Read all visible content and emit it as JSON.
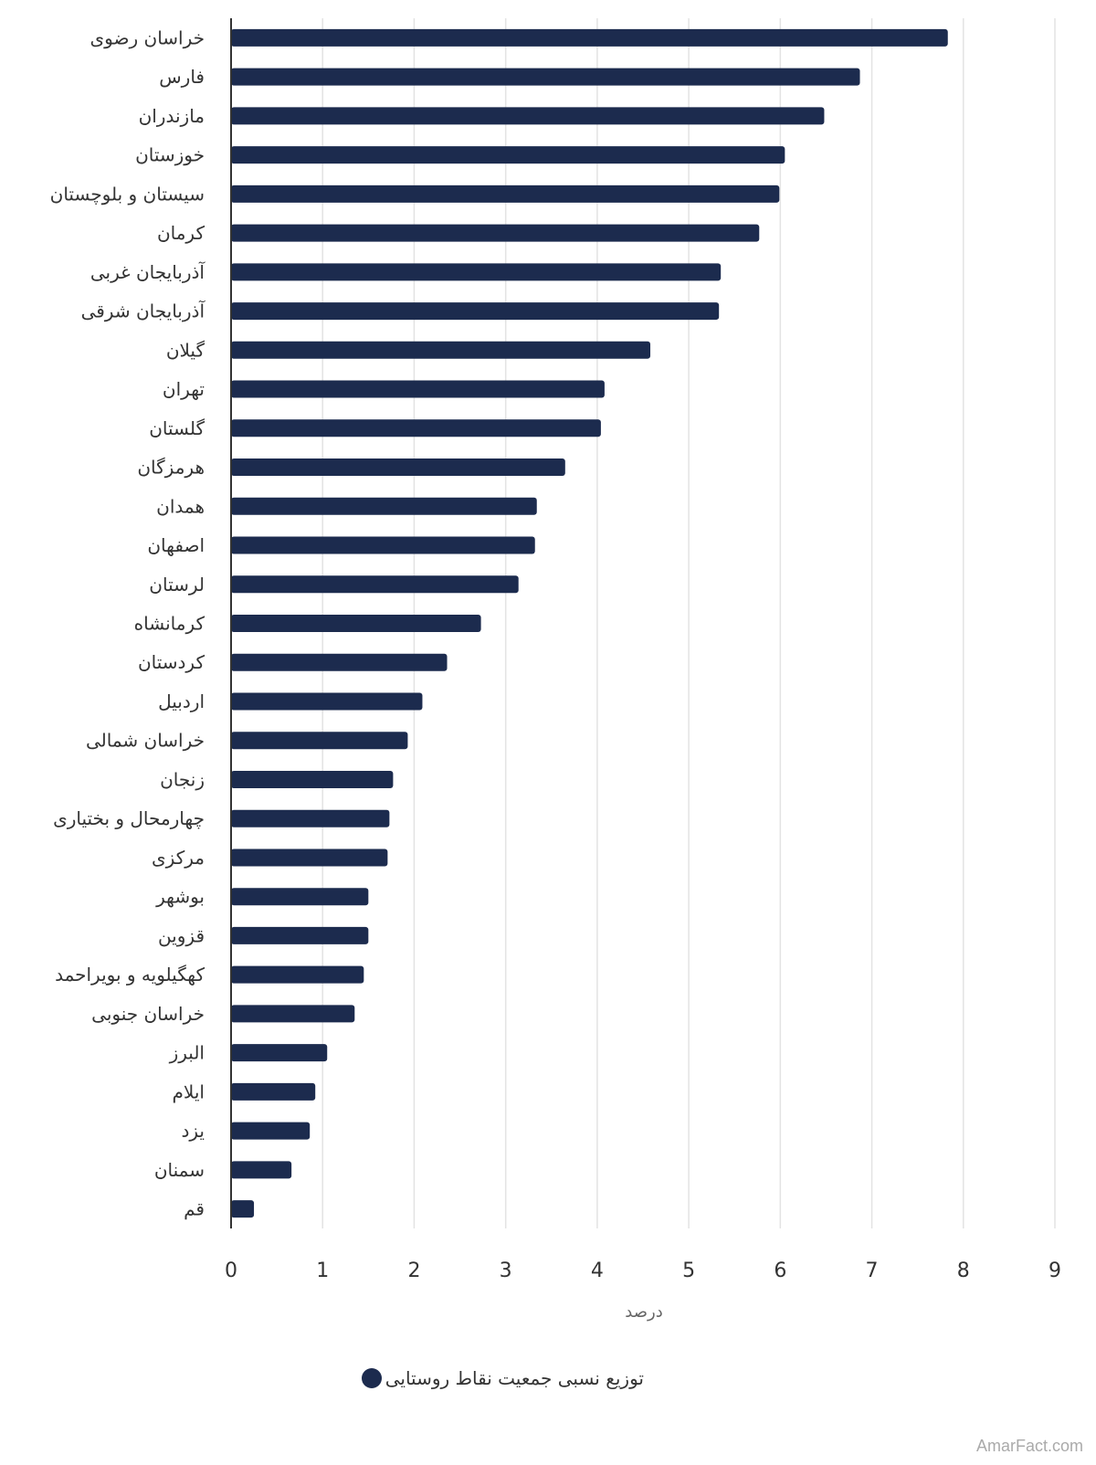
{
  "chart_data": {
    "type": "bar",
    "orientation": "horizontal",
    "categories": [
      "خراسان رضوی",
      "فارس",
      "مازندران",
      "خوزستان",
      "سیستان و بلوچستان",
      "کرمان",
      "آذربایجان غربی",
      "آذربایجان شرقی",
      "گیلان",
      "تهران",
      "گلستان",
      "هرمزگان",
      "همدان",
      "اصفهان",
      "لرستان",
      "کرمانشاه",
      "کردستان",
      "اردبیل",
      "خراسان شمالی",
      "زنجان",
      "چهارمحال و بختیاری",
      "مرکزی",
      "بوشهر",
      "قزوین",
      "کهگیلویه و بویراحمد",
      "خراسان جنوبی",
      "البرز",
      "ایلام",
      "یزد",
      "سمنان",
      "قم"
    ],
    "series": [
      {
        "name": "توزیع نسبی جمعیت نقاط روستایی",
        "color": "#1c2b4e",
        "values": [
          7.83,
          6.87,
          6.48,
          6.05,
          5.99,
          5.77,
          5.35,
          5.33,
          4.58,
          4.08,
          4.04,
          3.65,
          3.34,
          3.32,
          3.14,
          2.73,
          2.36,
          2.09,
          1.93,
          1.77,
          1.73,
          1.71,
          1.5,
          1.5,
          1.45,
          1.35,
          1.05,
          0.92,
          0.86,
          0.66,
          0.25
        ]
      }
    ],
    "xlabel": "درصد",
    "xlim": [
      0,
      9
    ],
    "xticks": [
      "0",
      "1",
      "2",
      "3",
      "4",
      "5",
      "6",
      "7",
      "8",
      "9"
    ],
    "grid": true,
    "legend_position": "bottom"
  },
  "watermark": "AmarFact.com"
}
